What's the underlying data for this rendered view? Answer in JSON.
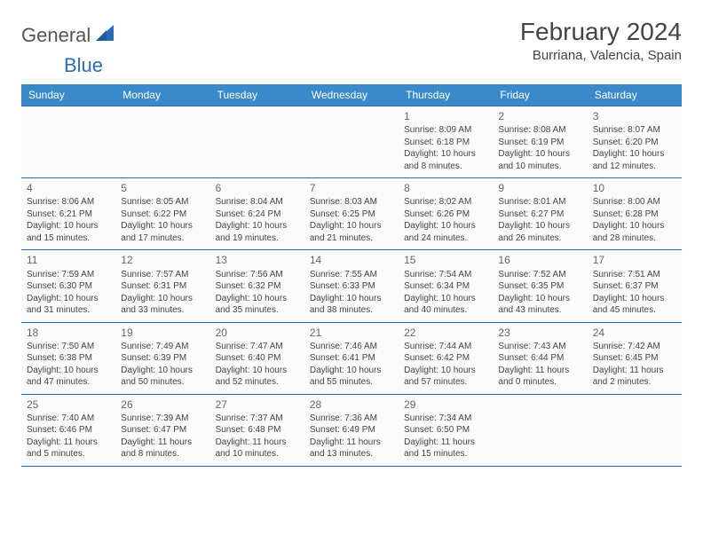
{
  "brand": {
    "part1": "General",
    "part2": "Blue"
  },
  "title": "February 2024",
  "location": "Burriana, Valencia, Spain",
  "columns": [
    "Sunday",
    "Monday",
    "Tuesday",
    "Wednesday",
    "Thursday",
    "Friday",
    "Saturday"
  ],
  "style": {
    "header_bg": "#3a8ac9",
    "header_fg": "#ffffff",
    "row_border": "#2a6db5",
    "body_text": "#444444",
    "daynum_color": "#666666",
    "cell_bg": "#fbfbfb",
    "page_bg": "#ffffff",
    "title_fontsize": 28,
    "location_fontsize": 15,
    "header_fontsize": 12,
    "cell_fontsize": 10,
    "logo_fontsize": 22
  },
  "weeks": [
    [
      {
        "n": "",
        "sr": "",
        "ss": "",
        "dl": ""
      },
      {
        "n": "",
        "sr": "",
        "ss": "",
        "dl": ""
      },
      {
        "n": "",
        "sr": "",
        "ss": "",
        "dl": ""
      },
      {
        "n": "",
        "sr": "",
        "ss": "",
        "dl": ""
      },
      {
        "n": "1",
        "sr": "Sunrise: 8:09 AM",
        "ss": "Sunset: 6:18 PM",
        "dl": "Daylight: 10 hours and 8 minutes."
      },
      {
        "n": "2",
        "sr": "Sunrise: 8:08 AM",
        "ss": "Sunset: 6:19 PM",
        "dl": "Daylight: 10 hours and 10 minutes."
      },
      {
        "n": "3",
        "sr": "Sunrise: 8:07 AM",
        "ss": "Sunset: 6:20 PM",
        "dl": "Daylight: 10 hours and 12 minutes."
      }
    ],
    [
      {
        "n": "4",
        "sr": "Sunrise: 8:06 AM",
        "ss": "Sunset: 6:21 PM",
        "dl": "Daylight: 10 hours and 15 minutes."
      },
      {
        "n": "5",
        "sr": "Sunrise: 8:05 AM",
        "ss": "Sunset: 6:22 PM",
        "dl": "Daylight: 10 hours and 17 minutes."
      },
      {
        "n": "6",
        "sr": "Sunrise: 8:04 AM",
        "ss": "Sunset: 6:24 PM",
        "dl": "Daylight: 10 hours and 19 minutes."
      },
      {
        "n": "7",
        "sr": "Sunrise: 8:03 AM",
        "ss": "Sunset: 6:25 PM",
        "dl": "Daylight: 10 hours and 21 minutes."
      },
      {
        "n": "8",
        "sr": "Sunrise: 8:02 AM",
        "ss": "Sunset: 6:26 PM",
        "dl": "Daylight: 10 hours and 24 minutes."
      },
      {
        "n": "9",
        "sr": "Sunrise: 8:01 AM",
        "ss": "Sunset: 6:27 PM",
        "dl": "Daylight: 10 hours and 26 minutes."
      },
      {
        "n": "10",
        "sr": "Sunrise: 8:00 AM",
        "ss": "Sunset: 6:28 PM",
        "dl": "Daylight: 10 hours and 28 minutes."
      }
    ],
    [
      {
        "n": "11",
        "sr": "Sunrise: 7:59 AM",
        "ss": "Sunset: 6:30 PM",
        "dl": "Daylight: 10 hours and 31 minutes."
      },
      {
        "n": "12",
        "sr": "Sunrise: 7:57 AM",
        "ss": "Sunset: 6:31 PM",
        "dl": "Daylight: 10 hours and 33 minutes."
      },
      {
        "n": "13",
        "sr": "Sunrise: 7:56 AM",
        "ss": "Sunset: 6:32 PM",
        "dl": "Daylight: 10 hours and 35 minutes."
      },
      {
        "n": "14",
        "sr": "Sunrise: 7:55 AM",
        "ss": "Sunset: 6:33 PM",
        "dl": "Daylight: 10 hours and 38 minutes."
      },
      {
        "n": "15",
        "sr": "Sunrise: 7:54 AM",
        "ss": "Sunset: 6:34 PM",
        "dl": "Daylight: 10 hours and 40 minutes."
      },
      {
        "n": "16",
        "sr": "Sunrise: 7:52 AM",
        "ss": "Sunset: 6:35 PM",
        "dl": "Daylight: 10 hours and 43 minutes."
      },
      {
        "n": "17",
        "sr": "Sunrise: 7:51 AM",
        "ss": "Sunset: 6:37 PM",
        "dl": "Daylight: 10 hours and 45 minutes."
      }
    ],
    [
      {
        "n": "18",
        "sr": "Sunrise: 7:50 AM",
        "ss": "Sunset: 6:38 PM",
        "dl": "Daylight: 10 hours and 47 minutes."
      },
      {
        "n": "19",
        "sr": "Sunrise: 7:49 AM",
        "ss": "Sunset: 6:39 PM",
        "dl": "Daylight: 10 hours and 50 minutes."
      },
      {
        "n": "20",
        "sr": "Sunrise: 7:47 AM",
        "ss": "Sunset: 6:40 PM",
        "dl": "Daylight: 10 hours and 52 minutes."
      },
      {
        "n": "21",
        "sr": "Sunrise: 7:46 AM",
        "ss": "Sunset: 6:41 PM",
        "dl": "Daylight: 10 hours and 55 minutes."
      },
      {
        "n": "22",
        "sr": "Sunrise: 7:44 AM",
        "ss": "Sunset: 6:42 PM",
        "dl": "Daylight: 10 hours and 57 minutes."
      },
      {
        "n": "23",
        "sr": "Sunrise: 7:43 AM",
        "ss": "Sunset: 6:44 PM",
        "dl": "Daylight: 11 hours and 0 minutes."
      },
      {
        "n": "24",
        "sr": "Sunrise: 7:42 AM",
        "ss": "Sunset: 6:45 PM",
        "dl": "Daylight: 11 hours and 2 minutes."
      }
    ],
    [
      {
        "n": "25",
        "sr": "Sunrise: 7:40 AM",
        "ss": "Sunset: 6:46 PM",
        "dl": "Daylight: 11 hours and 5 minutes."
      },
      {
        "n": "26",
        "sr": "Sunrise: 7:39 AM",
        "ss": "Sunset: 6:47 PM",
        "dl": "Daylight: 11 hours and 8 minutes."
      },
      {
        "n": "27",
        "sr": "Sunrise: 7:37 AM",
        "ss": "Sunset: 6:48 PM",
        "dl": "Daylight: 11 hours and 10 minutes."
      },
      {
        "n": "28",
        "sr": "Sunrise: 7:36 AM",
        "ss": "Sunset: 6:49 PM",
        "dl": "Daylight: 11 hours and 13 minutes."
      },
      {
        "n": "29",
        "sr": "Sunrise: 7:34 AM",
        "ss": "Sunset: 6:50 PM",
        "dl": "Daylight: 11 hours and 15 minutes."
      },
      {
        "n": "",
        "sr": "",
        "ss": "",
        "dl": ""
      },
      {
        "n": "",
        "sr": "",
        "ss": "",
        "dl": ""
      }
    ]
  ]
}
